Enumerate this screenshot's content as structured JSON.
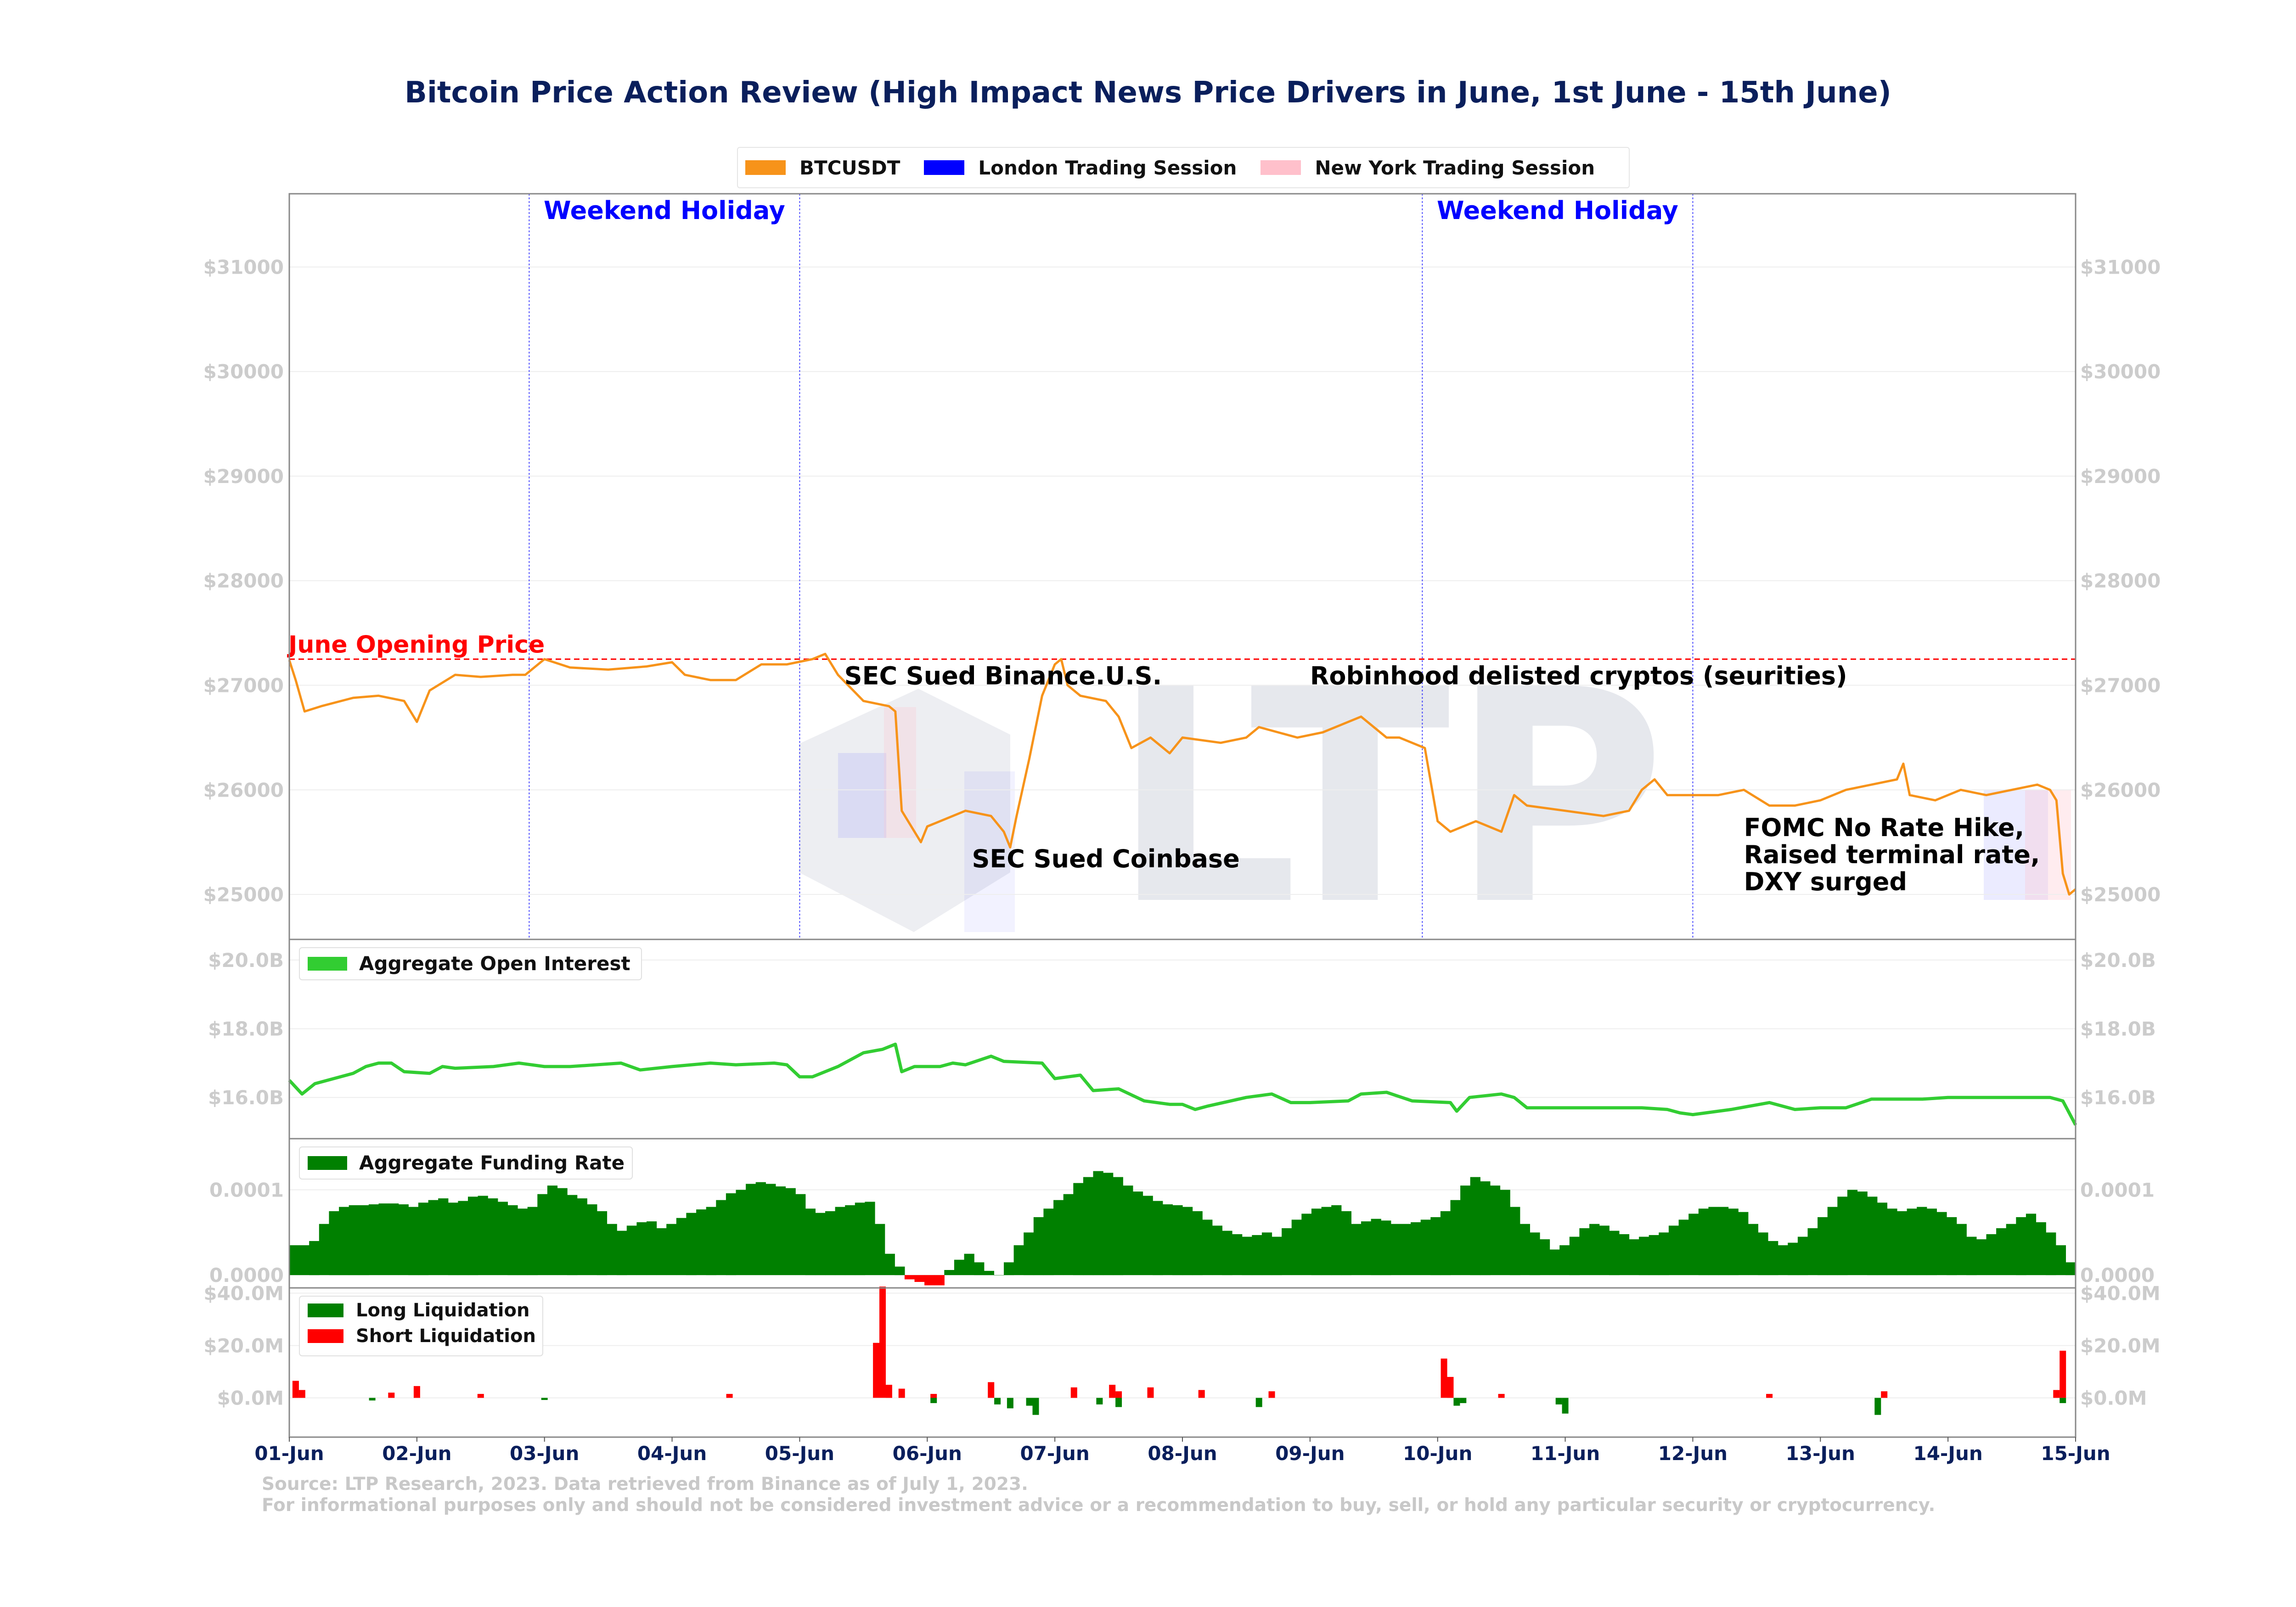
{
  "title": "Bitcoin Price Action Review (High Impact News Price Drivers in June, 1st June - 15th June)",
  "legend": {
    "items": [
      {
        "label": "BTCUSDT",
        "color": "#f7931a"
      },
      {
        "label": "London Trading Session",
        "color": "#0000ff"
      },
      {
        "label": "New York Trading Session",
        "color": "#ffc0cb"
      }
    ]
  },
  "footer": {
    "line1": "Source: LTP Research, 2023. Data retrieved from Binance as of July 1, 2023.",
    "line2": "For informational purposes only and should not be considered investment advice or a recommendation to buy, sell, or hold any particular security or cryptocurrency."
  },
  "watermark": {
    "text": "LTP"
  },
  "chart_data": [
    {
      "type": "line",
      "panel": "price",
      "series_name": "BTCUSDT",
      "color": "#f7931a",
      "xlim": [
        0,
        14
      ],
      "ylim": [
        24570,
        31700
      ],
      "yticks": [
        25000,
        26000,
        27000,
        28000,
        29000,
        30000,
        31000
      ],
      "ytick_labels": [
        "$25000",
        "$26000",
        "$27000",
        "$28000",
        "$29000",
        "$30000",
        "$31000"
      ],
      "points": [
        [
          0,
          27240
        ],
        [
          0.05,
          27050
        ],
        [
          0.12,
          26750
        ],
        [
          0.25,
          26800
        ],
        [
          0.5,
          26880
        ],
        [
          0.7,
          26900
        ],
        [
          0.9,
          26850
        ],
        [
          1.0,
          26650
        ],
        [
          1.1,
          26950
        ],
        [
          1.3,
          27100
        ],
        [
          1.5,
          27080
        ],
        [
          1.75,
          27100
        ],
        [
          1.85,
          27100
        ],
        [
          2.0,
          27250
        ],
        [
          2.2,
          27170
        ],
        [
          2.5,
          27150
        ],
        [
          2.8,
          27180
        ],
        [
          3.0,
          27220
        ],
        [
          3.1,
          27100
        ],
        [
          3.3,
          27050
        ],
        [
          3.5,
          27050
        ],
        [
          3.7,
          27200
        ],
        [
          3.9,
          27200
        ],
        [
          4.1,
          27250
        ],
        [
          4.2,
          27300
        ],
        [
          4.3,
          27100
        ],
        [
          4.5,
          26850
        ],
        [
          4.7,
          26800
        ],
        [
          4.75,
          26750
        ],
        [
          4.8,
          25800
        ],
        [
          4.95,
          25500
        ],
        [
          5.0,
          25650
        ],
        [
          5.3,
          25800
        ],
        [
          5.5,
          25750
        ],
        [
          5.6,
          25600
        ],
        [
          5.65,
          25450
        ],
        [
          5.7,
          25750
        ],
        [
          5.8,
          26300
        ],
        [
          5.9,
          26900
        ],
        [
          6.0,
          27200
        ],
        [
          6.05,
          27250
        ],
        [
          6.1,
          27000
        ],
        [
          6.2,
          26900
        ],
        [
          6.4,
          26850
        ],
        [
          6.5,
          26700
        ],
        [
          6.6,
          26400
        ],
        [
          6.75,
          26500
        ],
        [
          6.9,
          26350
        ],
        [
          7.0,
          26500
        ],
        [
          7.3,
          26450
        ],
        [
          7.5,
          26500
        ],
        [
          7.6,
          26600
        ],
        [
          7.9,
          26500
        ],
        [
          8.1,
          26550
        ],
        [
          8.2,
          26600
        ],
        [
          8.4,
          26700
        ],
        [
          8.6,
          26500
        ],
        [
          8.7,
          26500
        ],
        [
          8.9,
          26400
        ],
        [
          9.0,
          25700
        ],
        [
          9.1,
          25600
        ],
        [
          9.3,
          25700
        ],
        [
          9.5,
          25600
        ],
        [
          9.6,
          25950
        ],
        [
          9.7,
          25850
        ],
        [
          10.0,
          25800
        ],
        [
          10.3,
          25750
        ],
        [
          10.5,
          25800
        ],
        [
          10.6,
          26000
        ],
        [
          10.7,
          26100
        ],
        [
          10.8,
          25950
        ],
        [
          11.0,
          25950
        ],
        [
          11.2,
          25950
        ],
        [
          11.4,
          26000
        ],
        [
          11.6,
          25850
        ],
        [
          11.8,
          25850
        ],
        [
          12.0,
          25900
        ],
        [
          12.2,
          26000
        ],
        [
          12.4,
          26050
        ],
        [
          12.6,
          26100
        ],
        [
          12.65,
          26250
        ],
        [
          12.7,
          25950
        ],
        [
          12.9,
          25900
        ],
        [
          13.1,
          26000
        ],
        [
          13.3,
          25950
        ],
        [
          13.5,
          26000
        ],
        [
          13.7,
          26050
        ],
        [
          13.8,
          26000
        ],
        [
          13.85,
          25900
        ],
        [
          13.9,
          25200
        ],
        [
          13.95,
          25000
        ],
        [
          14.0,
          25050
        ]
      ],
      "reference_line": {
        "label": "June Opening Price",
        "value": 27250,
        "color": "#ff0000"
      },
      "vlines": [
        1.88,
        4.0,
        8.88,
        11.0
      ],
      "shaded_regions": [
        {
          "label": "Weekend Holiday",
          "x_range": [
            1.88,
            4.0
          ]
        },
        {
          "label": "Weekend Holiday",
          "x_range": [
            8.88,
            11.0
          ]
        }
      ],
      "annotations": [
        {
          "text": "SEC Sued Binance.U.S.",
          "x": 4.35,
          "y": 27000
        },
        {
          "text": "SEC Sued Coinbase",
          "x": 5.35,
          "y": 25250
        },
        {
          "text": "Robinhood delisted cryptos (seurities)",
          "x": 8.0,
          "y": 27000
        },
        {
          "text": "FOMC No Rate Hike,",
          "x": 11.4,
          "y": 25550
        },
        {
          "text": "Raised terminal rate,",
          "x": 11.4,
          "y": 25290
        },
        {
          "text": "DXY surged",
          "x": 11.4,
          "y": 25030
        }
      ]
    },
    {
      "type": "line",
      "panel": "open_interest",
      "series_name": "Aggregate Open Interest",
      "color": "#32cd32",
      "ylim": [
        14.8,
        20.6
      ],
      "yticks": [
        16.0,
        18.0,
        20.0
      ],
      "ytick_labels": [
        "$16.0B",
        "$18.0B",
        "$20.0B"
      ],
      "points": [
        [
          0,
          16.5
        ],
        [
          0.1,
          16.1
        ],
        [
          0.2,
          16.4
        ],
        [
          0.5,
          16.7
        ],
        [
          0.6,
          16.9
        ],
        [
          0.7,
          17.0
        ],
        [
          0.8,
          17.0
        ],
        [
          0.9,
          16.75
        ],
        [
          1.1,
          16.7
        ],
        [
          1.2,
          16.9
        ],
        [
          1.3,
          16.85
        ],
        [
          1.6,
          16.9
        ],
        [
          1.8,
          17.0
        ],
        [
          2.0,
          16.9
        ],
        [
          2.2,
          16.9
        ],
        [
          2.6,
          17.0
        ],
        [
          2.75,
          16.8
        ],
        [
          3.0,
          16.9
        ],
        [
          3.3,
          17.0
        ],
        [
          3.5,
          16.95
        ],
        [
          3.8,
          17.0
        ],
        [
          3.9,
          16.95
        ],
        [
          4.0,
          16.6
        ],
        [
          4.1,
          16.6
        ],
        [
          4.3,
          16.9
        ],
        [
          4.5,
          17.3
        ],
        [
          4.65,
          17.4
        ],
        [
          4.75,
          17.55
        ],
        [
          4.8,
          16.75
        ],
        [
          4.9,
          16.9
        ],
        [
          5.1,
          16.9
        ],
        [
          5.2,
          17.0
        ],
        [
          5.3,
          16.95
        ],
        [
          5.5,
          17.2
        ],
        [
          5.6,
          17.05
        ],
        [
          5.9,
          17.0
        ],
        [
          6.0,
          16.55
        ],
        [
          6.2,
          16.65
        ],
        [
          6.3,
          16.2
        ],
        [
          6.5,
          16.25
        ],
        [
          6.7,
          15.9
        ],
        [
          6.9,
          15.8
        ],
        [
          7.0,
          15.8
        ],
        [
          7.1,
          15.65
        ],
        [
          7.2,
          15.75
        ],
        [
          7.5,
          16.0
        ],
        [
          7.7,
          16.1
        ],
        [
          7.85,
          15.85
        ],
        [
          8.0,
          15.85
        ],
        [
          8.3,
          15.9
        ],
        [
          8.4,
          16.1
        ],
        [
          8.6,
          16.15
        ],
        [
          8.8,
          15.9
        ],
        [
          9.1,
          15.85
        ],
        [
          9.15,
          15.6
        ],
        [
          9.25,
          16.0
        ],
        [
          9.5,
          16.1
        ],
        [
          9.6,
          16.0
        ],
        [
          9.7,
          15.7
        ],
        [
          10.0,
          15.7
        ],
        [
          10.3,
          15.7
        ],
        [
          10.6,
          15.7
        ],
        [
          10.8,
          15.65
        ],
        [
          10.9,
          15.55
        ],
        [
          11.0,
          15.5
        ],
        [
          11.3,
          15.65
        ],
        [
          11.6,
          15.85
        ],
        [
          11.8,
          15.65
        ],
        [
          12.0,
          15.7
        ],
        [
          12.2,
          15.7
        ],
        [
          12.4,
          15.95
        ],
        [
          12.6,
          15.95
        ],
        [
          12.8,
          15.95
        ],
        [
          13.0,
          16.0
        ],
        [
          13.3,
          16.0
        ],
        [
          13.6,
          16.0
        ],
        [
          13.8,
          16.0
        ],
        [
          13.9,
          15.9
        ],
        [
          14.0,
          15.2
        ]
      ]
    },
    {
      "type": "bar",
      "panel": "funding_rate",
      "series_name": "Aggregate Funding Rate",
      "color": "#008000",
      "negative_color": "#ff0000",
      "ylim": [
        -1.5e-05,
        0.00016
      ],
      "yticks": [
        0.0,
        0.0001
      ],
      "ytick_labels": [
        "0.0000",
        "0.0001"
      ],
      "values": [
        3.5e-05,
        3.5e-05,
        4e-05,
        6e-05,
        7.5e-05,
        8e-05,
        8.2e-05,
        8.2e-05,
        8.3e-05,
        8.4e-05,
        8.4e-05,
        8.3e-05,
        8e-05,
        8.5e-05,
        8.8e-05,
        9e-05,
        8.5e-05,
        8.7e-05,
        9.2e-05,
        9.3e-05,
        9e-05,
        8.6e-05,
        8.2e-05,
        7.8e-05,
        8e-05,
        9.5e-05,
        0.000105,
        0.000102,
        9.4e-05,
        9e-05,
        8.3e-05,
        7.5e-05,
        6e-05,
        5.2e-05,
        5.8e-05,
        6.2e-05,
        6.3e-05,
        5.5e-05,
        6e-05,
        6.7e-05,
        7.3e-05,
        7.7e-05,
        8e-05,
        8.8e-05,
        9.6e-05,
        0.0001,
        0.000107,
        0.000109,
        0.000107,
        0.000104,
        0.000102,
        9.5e-05,
        7.8e-05,
        7.3e-05,
        7.5e-05,
        8e-05,
        8.2e-05,
        8.5e-05,
        8.6e-05,
        6e-05,
        2.5e-05,
        1e-05,
        -5e-06,
        -8e-06,
        -1.2e-05,
        -1.2e-05,
        6e-06,
        1.8e-05,
        2.5e-05,
        1.5e-05,
        5e-06,
        0.0,
        1.5e-05,
        3.5e-05,
        5e-05,
        6.8e-05,
        7.8e-05,
        8.8e-05,
        9.5e-05,
        0.000108,
        0.000115,
        0.000122,
        0.00012,
        0.000115,
        0.000105,
        9.8e-05,
        9.3e-05,
        8.7e-05,
        8.3e-05,
        8.2e-05,
        8e-05,
        7.5e-05,
        6.5e-05,
        5.8e-05,
        5.2e-05,
        4.8e-05,
        4.5e-05,
        4.7e-05,
        5e-05,
        4.5e-05,
        5.5e-05,
        6.5e-05,
        7.2e-05,
        7.8e-05,
        8e-05,
        8.2e-05,
        7.5e-05,
        6e-05,
        6.3e-05,
        6.6e-05,
        6.4e-05,
        6e-05,
        6e-05,
        6.2e-05,
        6.5e-05,
        6.8e-05,
        7.5e-05,
        8.8e-05,
        0.000105,
        0.000115,
        0.00011,
        0.000105,
        0.0001,
        8e-05,
        6e-05,
        5e-05,
        4.2e-05,
        3e-05,
        3.5e-05,
        4.5e-05,
        5.5e-05,
        6e-05,
        5.8e-05,
        5.2e-05,
        4.8e-05,
        4.2e-05,
        4.5e-05,
        4.7e-05,
        5e-05,
        5.8e-05,
        6.5e-05,
        7.2e-05,
        7.8e-05,
        8e-05,
        8e-05,
        7.8e-05,
        7.4e-05,
        6e-05,
        5e-05,
        4e-05,
        3.5e-05,
        3.8e-05,
        4.5e-05,
        5.5e-05,
        6.8e-05,
        8e-05,
        9.2e-05,
        0.0001,
        9.8e-05,
        9.2e-05,
        8.5e-05,
        7.8e-05,
        7.5e-05,
        7.8e-05,
        8e-05,
        7.8e-05,
        7.4e-05,
        6.8e-05,
        6e-05,
        4.5e-05,
        4.2e-05,
        4.8e-05,
        5.5e-05,
        6e-05,
        6.8e-05,
        7.2e-05,
        6.2e-05,
        5e-05,
        3.5e-05,
        1.5e-05
      ],
      "x_start": 0,
      "x_end": 14
    },
    {
      "type": "bar",
      "panel": "liquidations",
      "ylim": [
        -15,
        42
      ],
      "yticks": [
        0,
        20,
        40
      ],
      "ytick_labels": [
        "$0.0M",
        "$20.0M",
        "$40.0M"
      ],
      "series": [
        {
          "name": "Long Liquidation",
          "color": "#008000",
          "points": [
            [
              0.65,
              -1.0
            ],
            [
              2.0,
              -0.8
            ],
            [
              5.05,
              -2.0
            ],
            [
              5.55,
              -2.5
            ],
            [
              5.65,
              -4.0
            ],
            [
              5.8,
              -3.0
            ],
            [
              5.85,
              -6.5
            ],
            [
              6.35,
              -2.5
            ],
            [
              6.5,
              -3.5
            ],
            [
              7.6,
              -3.5
            ],
            [
              9.15,
              -3.0
            ],
            [
              9.2,
              -2.0
            ],
            [
              9.95,
              -2.5
            ],
            [
              10.0,
              -6.0
            ],
            [
              12.45,
              -6.5
            ],
            [
              13.9,
              -2.0
            ]
          ]
        },
        {
          "name": "Short Liquidation",
          "color": "#ff0000",
          "points": [
            [
              0.05,
              6.5
            ],
            [
              0.1,
              3.0
            ],
            [
              0.8,
              2.0
            ],
            [
              1.0,
              4.5
            ],
            [
              1.5,
              1.5
            ],
            [
              3.45,
              1.5
            ],
            [
              4.6,
              21.0
            ],
            [
              4.65,
              42.5
            ],
            [
              4.7,
              5.0
            ],
            [
              4.8,
              3.5
            ],
            [
              5.05,
              1.5
            ],
            [
              5.5,
              6.0
            ],
            [
              6.15,
              4.0
            ],
            [
              6.45,
              5.0
            ],
            [
              6.5,
              2.5
            ],
            [
              6.75,
              4.0
            ],
            [
              7.15,
              3.0
            ],
            [
              7.7,
              2.5
            ],
            [
              9.05,
              15.0
            ],
            [
              9.1,
              8.0
            ],
            [
              9.5,
              1.5
            ],
            [
              11.6,
              1.5
            ],
            [
              12.5,
              2.5
            ],
            [
              13.9,
              18.0
            ],
            [
              13.85,
              3.0
            ]
          ]
        }
      ]
    }
  ],
  "x_axis": {
    "ticks": [
      "01-Jun",
      "02-Jun",
      "03-Jun",
      "04-Jun",
      "05-Jun",
      "06-Jun",
      "07-Jun",
      "08-Jun",
      "09-Jun",
      "10-Jun",
      "11-Jun",
      "12-Jun",
      "13-Jun",
      "14-Jun",
      "15-Jun"
    ]
  }
}
